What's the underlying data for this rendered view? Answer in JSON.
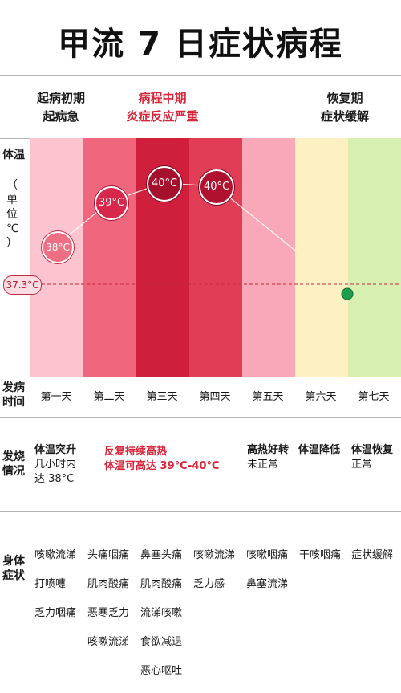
{
  "title": "甲流 7 日症状病程",
  "phases": {
    "early": [
      "起病初期",
      "起病急"
    ],
    "mid": [
      "病程中期",
      "炎症反应严重"
    ],
    "recovery": [
      "恢复期",
      "症状缓解"
    ]
  },
  "temperature_section": {
    "label_top": "体温",
    "label_sub": [
      "（",
      "单",
      "位",
      "℃",
      "）"
    ],
    "baseline": "37.3°C",
    "readings": [
      {
        "day": "第一天",
        "value": "38°C"
      },
      {
        "day": "第二天",
        "value": "39°C"
      },
      {
        "day": "第三天",
        "value": "40°C"
      },
      {
        "day": "第四天",
        "value": "40°C"
      }
    ]
  },
  "onset_row": {
    "label": [
      "发病",
      "时间"
    ],
    "days": [
      "第一天",
      "第二天",
      "第三天",
      "第四天",
      "第五天",
      "第六天",
      "第七天"
    ]
  },
  "fever_row": {
    "label": [
      "发烧",
      "情况"
    ],
    "day1": {
      "head": "体温突升",
      "body": [
        "几小时内",
        "达 38°C"
      ]
    },
    "day2_4": {
      "line1": "反复持续高热",
      "line2": "体温可高达 39°C-40°C"
    },
    "day5": {
      "head": "高热好转",
      "body": "未正常"
    },
    "day6": {
      "head": "体温降低"
    },
    "day7": {
      "head": "体温恢复",
      "body": "正常"
    }
  },
  "symptom_row": {
    "label": [
      "身体",
      "症状"
    ],
    "days": [
      [
        "咳嗽流涕",
        "打喷嚏",
        "乏力咽痛"
      ],
      [
        "头痛咽痛",
        "肌肉酸痛",
        "恶寒乏力",
        "咳嗽流涕"
      ],
      [
        "鼻塞头痛",
        "肌肉酸痛",
        "流涕咳嗽",
        "食欲减退",
        "恶心呕吐"
      ],
      [
        "咳嗽流涕",
        "乏力感"
      ],
      [
        "咳嗽咽痛",
        "鼻塞流涕"
      ],
      [
        "干咳咽痛"
      ],
      [
        "症状缓解"
      ]
    ]
  },
  "colors": {
    "day1": "#fbc4cf",
    "day2": "#f0667c",
    "day3": "#d01f3d",
    "day4": "#e23d57",
    "day5": "#f8a8b6",
    "day6": "#fdf0c2",
    "day7": "#d7f0b1",
    "accent_red": "#d9243a",
    "recovery_dot": "#1f9d4d"
  }
}
